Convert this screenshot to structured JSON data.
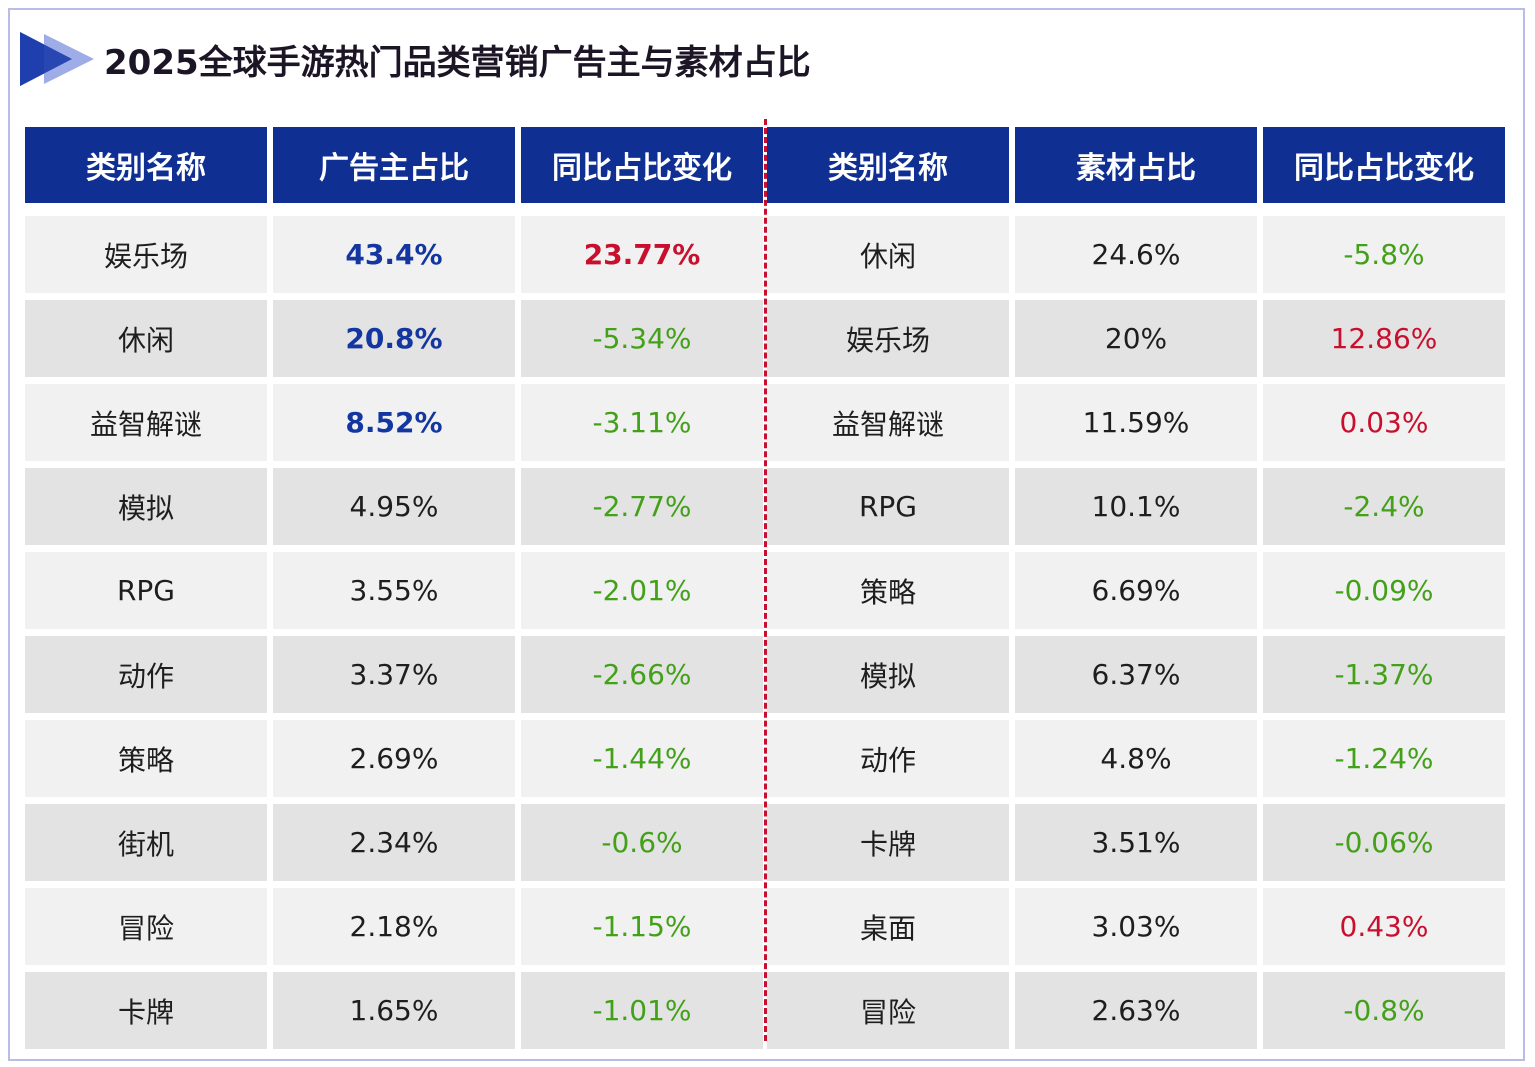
{
  "title": "2025全球手游热门品类营销广告主与素材占比",
  "colors": {
    "header_bg": "#0f2f93",
    "highlight_blue": "#1336a0",
    "increase_red": "#c8102e",
    "decrease_green": "#43a019",
    "row_light": "#f1f1f1",
    "row_dark": "#e3e3e3",
    "divider": "#c8102e"
  },
  "icons": {
    "title_marker": "double-triangle-arrow-icon"
  },
  "advertiser_table": {
    "headers": [
      "类别名称",
      "广告主占比",
      "同比占比变化"
    ],
    "rows": [
      {
        "category": "娱乐场",
        "share": "43.4%",
        "change": "23.77%"
      },
      {
        "category": "休闲",
        "share": "20.8%",
        "change": "-5.34%"
      },
      {
        "category": "益智解谜",
        "share": "8.52%",
        "change": "-3.11%"
      },
      {
        "category": "模拟",
        "share": "4.95%",
        "change": "-2.77%"
      },
      {
        "category": "RPG",
        "share": "3.55%",
        "change": "-2.01%"
      },
      {
        "category": "动作",
        "share": "3.37%",
        "change": "-2.66%"
      },
      {
        "category": "策略",
        "share": "2.69%",
        "change": "-1.44%"
      },
      {
        "category": "街机",
        "share": "2.34%",
        "change": "-0.6%"
      },
      {
        "category": "冒险",
        "share": "2.18%",
        "change": "-1.15%"
      },
      {
        "category": "卡牌",
        "share": "1.65%",
        "change": "-1.01%"
      }
    ]
  },
  "material_table": {
    "headers": [
      "类别名称",
      "素材占比",
      "同比占比变化"
    ],
    "rows": [
      {
        "category": "休闲",
        "share": "24.6%",
        "change": "-5.8%"
      },
      {
        "category": "娱乐场",
        "share": "20%",
        "change": "12.86%"
      },
      {
        "category": "益智解谜",
        "share": "11.59%",
        "change": "0.03%"
      },
      {
        "category": "RPG",
        "share": "10.1%",
        "change": "-2.4%"
      },
      {
        "category": "策略",
        "share": "6.69%",
        "change": "-0.09%"
      },
      {
        "category": "模拟",
        "share": "6.37%",
        "change": "-1.37%"
      },
      {
        "category": "动作",
        "share": "4.8%",
        "change": "-1.24%"
      },
      {
        "category": "卡牌",
        "share": "3.51%",
        "change": "-0.06%"
      },
      {
        "category": "桌面",
        "share": "3.03%",
        "change": "0.43%"
      },
      {
        "category": "冒险",
        "share": "2.63%",
        "change": "-0.8%"
      }
    ]
  }
}
